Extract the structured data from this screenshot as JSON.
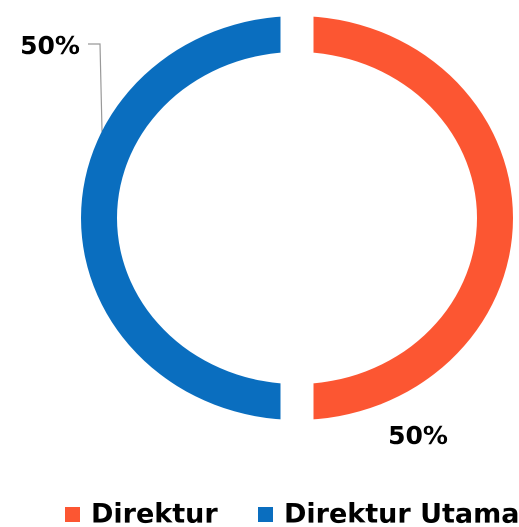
{
  "chart_data": {
    "type": "pie",
    "donut": true,
    "categories": [
      "Direktur",
      "Direktur Utama"
    ],
    "values": [
      50,
      50
    ],
    "value_labels": [
      "50%",
      "50%"
    ],
    "colors": [
      "#fc5632",
      "#0a6ebf"
    ],
    "legend": "bottom"
  }
}
